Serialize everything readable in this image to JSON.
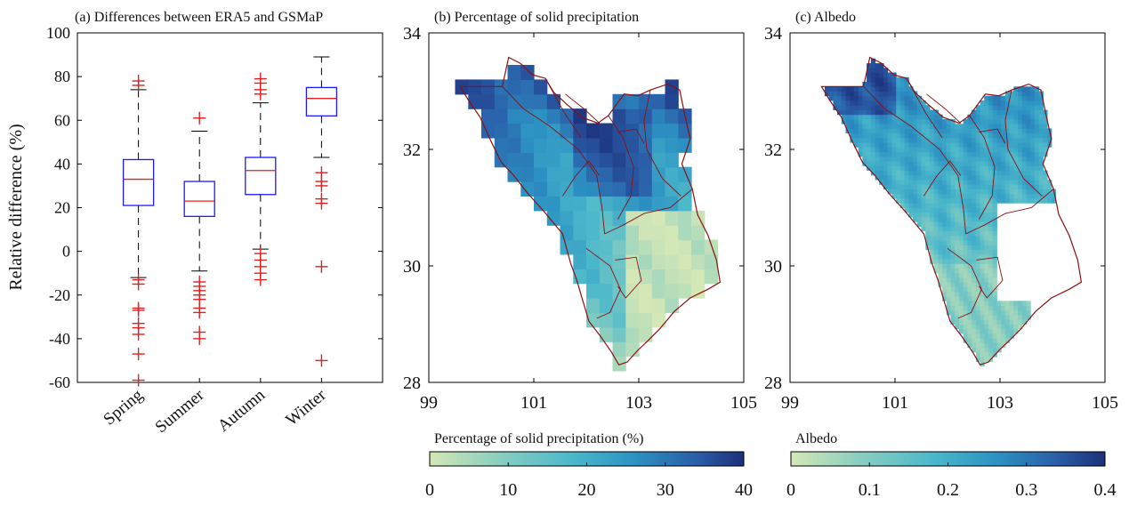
{
  "chart_data": [
    {
      "type": "box",
      "title": "(a) Differences between ERA5 and GSMaP",
      "ylabel": "Relative difference (%)",
      "ylim": [
        -60,
        100
      ],
      "yticks": [
        -60,
        -40,
        -20,
        0,
        20,
        40,
        60,
        80,
        100
      ],
      "categories": [
        "Spring",
        "Summer",
        "Autumn",
        "Winter"
      ],
      "colors": {
        "box": "#1a1aff",
        "median": "#e0201e",
        "outlier": "#e0201e",
        "whisker": "#000000"
      },
      "boxes": [
        {
          "category": "Spring",
          "whisker_low": -12,
          "q1": 21,
          "median": 33,
          "q3": 42,
          "whisker_high": 74,
          "outliers": [
            78,
            76,
            -13,
            -15,
            -26,
            -27,
            -33,
            -35,
            -38,
            -47,
            -59
          ]
        },
        {
          "category": "Summer",
          "whisker_low": -9,
          "q1": 16,
          "median": 23,
          "q3": 32,
          "whisker_high": 55,
          "outliers": [
            61,
            -14,
            -16,
            -18,
            -20,
            -22,
            -26,
            -28,
            -37,
            -40
          ]
        },
        {
          "category": "Autumn",
          "whisker_low": 1,
          "q1": 26,
          "median": 37,
          "q3": 43,
          "whisker_high": 68,
          "outliers": [
            79,
            77,
            74,
            72,
            -1,
            -4,
            -7,
            -10,
            -13
          ]
        },
        {
          "category": "Winter",
          "whisker_low": 43,
          "q1": 62,
          "median": 70,
          "q3": 75,
          "whisker_high": 89,
          "outliers": [
            36,
            32,
            30,
            24,
            22,
            -7,
            -50
          ]
        }
      ]
    },
    {
      "type": "heatmap",
      "title": "(b) Percentage of solid precipitation",
      "xlim": [
        99,
        105
      ],
      "ylim": [
        28,
        34
      ],
      "xticks": [
        99,
        101,
        103,
        105
      ],
      "yticks": [
        28,
        30,
        32,
        34
      ],
      "colorbar": {
        "label": "Percentage of solid precipitation (%)",
        "min": 0,
        "max": 40,
        "ticks": [
          0,
          10,
          20,
          30,
          40
        ]
      },
      "colormap": [
        "#d4e7b6",
        "#8fd0bf",
        "#4cb8cb",
        "#2c93c3",
        "#2a5da8",
        "#1d2f7a"
      ]
    },
    {
      "type": "heatmap",
      "title": "(c) Albedo",
      "xlim": [
        99,
        105
      ],
      "ylim": [
        28,
        34
      ],
      "xticks": [
        99,
        101,
        103,
        105
      ],
      "yticks": [
        28,
        30,
        32,
        34
      ],
      "colorbar": {
        "label": "Albedo",
        "min": 0,
        "max": 0.4,
        "ticks": [
          0,
          0.1,
          0.2,
          0.3,
          0.4
        ]
      },
      "colormap": [
        "#d4e7b6",
        "#8fd0bf",
        "#4cb8cb",
        "#2c93c3",
        "#2a5da8",
        "#1d2f7a"
      ]
    }
  ]
}
